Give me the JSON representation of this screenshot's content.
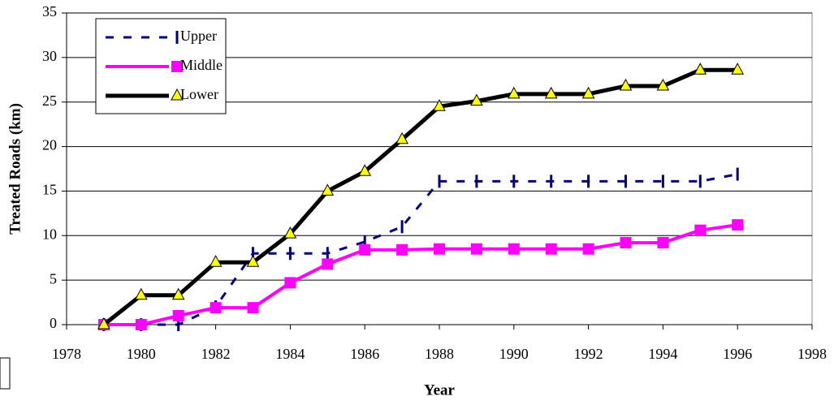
{
  "chart_data": {
    "type": "line",
    "xlabel": "Year",
    "ylabel": "Treated Roads (km)",
    "x": [
      1979,
      1980,
      1981,
      1982,
      1983,
      1984,
      1985,
      1986,
      1987,
      1988,
      1989,
      1990,
      1991,
      1992,
      1993,
      1994,
      1995,
      1996
    ],
    "series": [
      {
        "name": "Upper",
        "color": "#000080",
        "values": [
          0,
          0,
          0,
          2,
          8.0,
          8.0,
          8.0,
          9.3,
          11,
          16.1,
          16.1,
          16.1,
          16.1,
          16.1,
          16.1,
          16.1,
          16.1,
          16.9
        ]
      },
      {
        "name": "Middle",
        "color": "#ff00ff",
        "values": [
          0,
          0,
          1.0,
          1.9,
          1.9,
          4.7,
          6.8,
          8.4,
          8.4,
          8.5,
          8.5,
          8.5,
          8.5,
          8.5,
          9.2,
          9.2,
          10.6,
          11.2
        ]
      },
      {
        "name": "Lower",
        "color": "#000000",
        "values": [
          0,
          3.3,
          3.3,
          7.0,
          7.0,
          10.2,
          15.0,
          17.2,
          20.8,
          24.5,
          25.1,
          25.9,
          25.9,
          25.9,
          26.8,
          26.8,
          28.6,
          28.6
        ]
      }
    ],
    "xlim": [
      1978,
      1998
    ],
    "xticks": [
      1978,
      1980,
      1982,
      1984,
      1986,
      1988,
      1990,
      1992,
      1994,
      1996,
      1998
    ],
    "ylim": [
      0,
      35
    ],
    "yticks": [
      0,
      5,
      10,
      15,
      20,
      25,
      30,
      35
    ],
    "grid": true,
    "legend": "upper left"
  }
}
